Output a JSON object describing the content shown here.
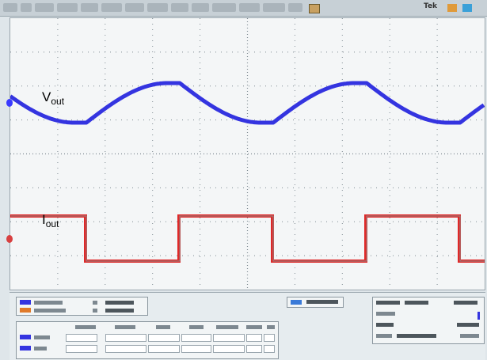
{
  "window": {
    "trigger_label": "Tek"
  },
  "channels": [
    {
      "name": "V",
      "sub": "out",
      "color": "#3434e0"
    },
    {
      "name": "I",
      "sub": "out",
      "color": "#e02828"
    }
  ],
  "colors": {
    "grid": "#7e8a92",
    "screen": "#f4f6f7",
    "panel": "#e6ecef"
  }
}
